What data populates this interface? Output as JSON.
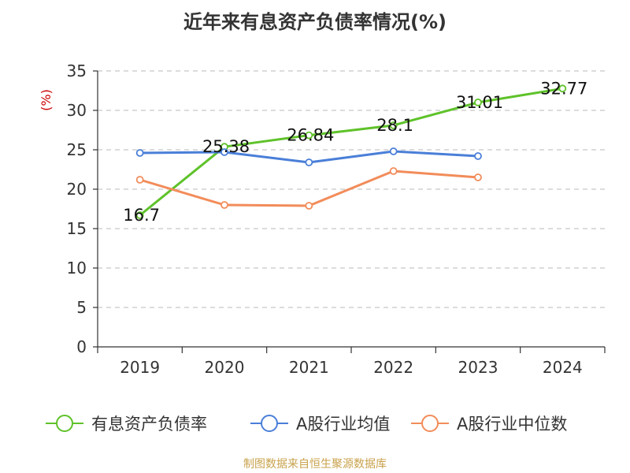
{
  "title": "近年来有息资产负债率情况(%)",
  "footer": "制图数据来自恒生聚源数据库",
  "chart_data": {
    "type": "line",
    "categories": [
      "2019",
      "2020",
      "2021",
      "2022",
      "2023",
      "2024"
    ],
    "ylabel": "(%)",
    "ylim": [
      0,
      35
    ],
    "yticks": [
      0,
      5,
      10,
      15,
      20,
      25,
      30,
      35
    ],
    "grid": true,
    "legend": "bottom",
    "series": [
      {
        "name": "有息资产负债率",
        "color": "#5fc22a",
        "values": [
          16.7,
          25.38,
          26.84,
          28.1,
          31.01,
          32.77
        ],
        "labels": [
          "16.7",
          "25.38",
          "26.84",
          "28.1",
          "31.01",
          "32.77"
        ]
      },
      {
        "name": "A股行业均值",
        "color": "#4a7fd8",
        "values": [
          24.6,
          24.7,
          23.4,
          24.8,
          24.2,
          null
        ]
      },
      {
        "name": "A股行业中位数",
        "color": "#f28c5a",
        "values": [
          21.2,
          18.0,
          17.9,
          22.3,
          21.5,
          null
        ]
      }
    ]
  }
}
